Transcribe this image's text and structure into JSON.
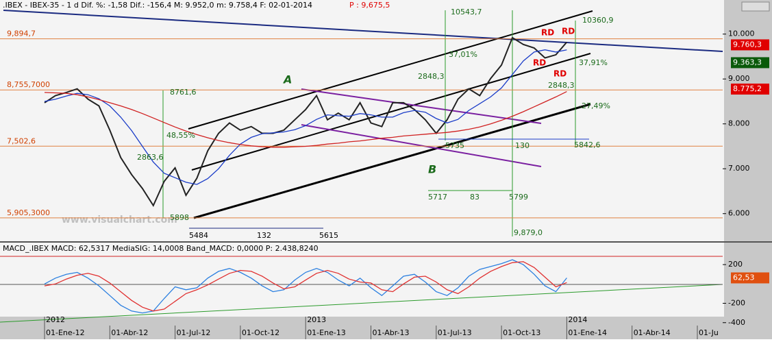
{
  "header": {
    "text": ".IBEX - IBEX-35 -  1 d Dif. %: -1,58 Dif.: -156,4 M: 9.952,0 m: 9.758,4 F: 02-01-2014",
    "price": "P : 9,675,5"
  },
  "watermark": "www.visualchart.com",
  "years": [
    "2012",
    "2013",
    "2014"
  ],
  "annotations": [
    "10543,7",
    "10360,9",
    "37,01%",
    "37,91%",
    "2848,3",
    "2848,3",
    "-27,49%",
    "8761,6",
    "48,55%",
    "2863,6",
    "5898",
    "5484",
    "132",
    "5615",
    "5735",
    "130",
    "5842,6",
    "5717",
    "83",
    "5799",
    "9,879,0",
    "RD",
    "RD",
    "RD",
    "RD",
    "A",
    "B"
  ],
  "chart_data": [
    {
      "type": "line",
      "ylim": [
        5400,
        10500
      ],
      "yticks": [
        {
          "value": 6000,
          "label": "6.000"
        },
        {
          "value": 7000,
          "label": "7.000"
        },
        {
          "value": 8000,
          "label": "8.000"
        },
        {
          "value": 9000,
          "label": "9.000"
        },
        {
          "value": 10000,
          "label": "10.000"
        }
      ],
      "levels": [
        {
          "value": 9894.7,
          "label": "9,894,7"
        },
        {
          "value": 8755.7,
          "label": "8,755,7000"
        },
        {
          "value": 7502.6,
          "label": "7,502,6"
        },
        {
          "value": 5905.3,
          "label": "5,905,3000"
        }
      ],
      "badges": [
        {
          "value": 9760.3,
          "label": "9.760,3",
          "color": "#e00000"
        },
        {
          "value": 9363.3,
          "label": "9.363,3",
          "color": "#0a5a0a"
        },
        {
          "value": 8775.2,
          "label": "8.775,2",
          "color": "#e00000"
        }
      ],
      "series": [
        {
          "color": "#222222",
          "values": [
            8470,
            8630,
            8700,
            8780,
            8550,
            8400,
            7860,
            7250,
            6870,
            6560,
            6180,
            6720,
            7020,
            6410,
            6790,
            7400,
            7790,
            8020,
            7860,
            7940,
            7790,
            7790,
            7860,
            8090,
            8320,
            8630,
            8090,
            8240,
            8090,
            8470,
            8020,
            7940,
            8470,
            8470,
            8320,
            8090,
            7790,
            8090,
            8550,
            8780,
            8630,
            9010,
            9310,
            9920,
            9770,
            9690,
            9470,
            9540,
            9820
          ]
        },
        {
          "color": "#1a3cc8",
          "values": [
            8500,
            8550,
            8620,
            8680,
            8650,
            8560,
            8400,
            8150,
            7850,
            7500,
            7150,
            6900,
            6800,
            6700,
            6650,
            6780,
            7000,
            7300,
            7550,
            7700,
            7780,
            7800,
            7820,
            7870,
            7960,
            8100,
            8200,
            8180,
            8170,
            8230,
            8200,
            8150,
            8150,
            8250,
            8300,
            8260,
            8120,
            8020,
            8100,
            8300,
            8450,
            8600,
            8800,
            9100,
            9400,
            9600,
            9650,
            9600,
            9650
          ]
        },
        {
          "color": "#d02020",
          "values": [
            8700,
            8690,
            8680,
            8650,
            8600,
            8540,
            8470,
            8400,
            8320,
            8230,
            8130,
            8030,
            7930,
            7840,
            7760,
            7690,
            7630,
            7580,
            7540,
            7510,
            7490,
            7480,
            7480,
            7490,
            7500,
            7520,
            7550,
            7570,
            7600,
            7620,
            7650,
            7680,
            7700,
            7730,
            7750,
            7770,
            7790,
            7810,
            7840,
            7880,
            7930,
            8000,
            8080,
            8170,
            8270,
            8380,
            8490,
            8600,
            8720
          ]
        }
      ]
    },
    {
      "type": "line",
      "title": "MACD_.IBEX MACD: 62,5317 MediaSIG: 14,0008 Band_MACD: 0,0000 P: 2.438,8240",
      "ylim": [
        -430,
        420
      ],
      "yticks": [
        200,
        -200,
        -400
      ],
      "badge": {
        "value": 62.53,
        "label": "62,53",
        "color": "#e05010"
      },
      "xticks": [
        "01-Ene-12",
        "01-Abr-12",
        "01-Jul-12",
        "01-Oct-12",
        "01-Ene-13",
        "01-Abr-13",
        "01-Jul-13",
        "01-Oct-13",
        "01-Ene-14",
        "01-Abr-14",
        "01-Ju"
      ],
      "series": [
        {
          "color": "#2a7fe0",
          "values": [
            0,
            60,
            100,
            120,
            60,
            -20,
            -120,
            -220,
            -280,
            -300,
            -280,
            -150,
            -30,
            -60,
            -40,
            60,
            130,
            160,
            120,
            60,
            -20,
            -80,
            -60,
            40,
            120,
            160,
            120,
            40,
            -20,
            60,
            -40,
            -120,
            -20,
            80,
            100,
            20,
            -80,
            -120,
            -40,
            80,
            150,
            180,
            210,
            250,
            200,
            100,
            -20,
            -80,
            62.53
          ]
        },
        {
          "color": "#e03030",
          "values": [
            -20,
            0,
            50,
            90,
            110,
            80,
            10,
            -80,
            -170,
            -240,
            -280,
            -260,
            -180,
            -100,
            -60,
            -10,
            50,
            110,
            140,
            130,
            80,
            10,
            -50,
            -30,
            40,
            110,
            140,
            110,
            50,
            20,
            10,
            -60,
            -80,
            0,
            70,
            80,
            20,
            -60,
            -100,
            -30,
            60,
            130,
            180,
            220,
            230,
            170,
            70,
            -30,
            14
          ]
        }
      ]
    }
  ]
}
